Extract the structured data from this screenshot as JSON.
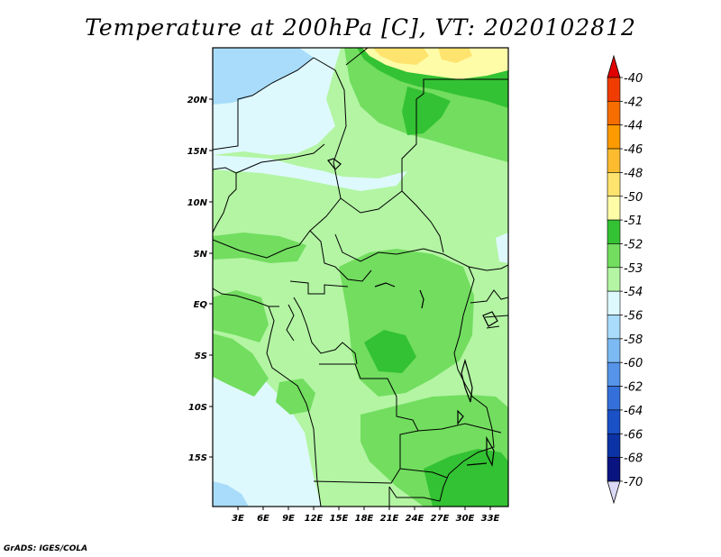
{
  "title": "Temperature at 200hPa [C], VT: 2020102812",
  "credit": "GrADS: IGES/COLA",
  "axes": {
    "lat_ticks": [
      "20N",
      "15N",
      "10N",
      "5N",
      "EQ",
      "5S",
      "10S",
      "15S"
    ],
    "lon_ticks": [
      "3E",
      "6E",
      "9E",
      "12E",
      "15E",
      "18E",
      "21E",
      "24E",
      "27E",
      "30E",
      "33E"
    ]
  },
  "colorbar": {
    "labels": [
      "-40",
      "-42",
      "-44",
      "-46",
      "-48",
      "-50",
      "-51",
      "-52",
      "-53",
      "-54",
      "-56",
      "-58",
      "-60",
      "-62",
      "-64",
      "-66",
      "-68",
      "-70"
    ],
    "colors": [
      "#e00000",
      "#f03c00",
      "#f76e00",
      "#fc9a00",
      "#fdbc30",
      "#fee36e",
      "#fffca8",
      "#33c233",
      "#72dd5f",
      "#b3f5a3",
      "#def9fe",
      "#a8dcfa",
      "#7cbaf3",
      "#5594e8",
      "#3470d9",
      "#1b51c7",
      "#0c33a5",
      "#0a1480",
      "#dad9f6"
    ],
    "top_arrow_color": "#e00000",
    "bottom_arrow_color": "#dad9f6"
  },
  "map_colors": {
    "very_light_blue": "#def9fe",
    "light_blue": "#a8dcfa",
    "pale_green": "#b3f5a3",
    "light_green": "#72dd5f",
    "green": "#33c233",
    "pale_yellow": "#fffca8",
    "yellow": "#fee36e"
  }
}
